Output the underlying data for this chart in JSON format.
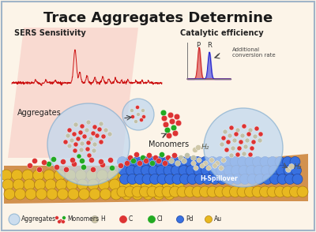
{
  "title": "Trace Aggregates Determine",
  "title_fontsize": 13,
  "background_color": "#fcf4e8",
  "border_color": "#a0b4c8",
  "sers_label": "SERS Sensitivity",
  "cat_label": "Catalytic efficiency",
  "aggregates_label": "Aggregates",
  "monomers_label": "Monomers",
  "h_spillover_label": "H-Spillover",
  "h2_label": "H₂",
  "additional_label": "Additional\nconversion rate",
  "legend_items": [
    "Aggregates",
    "Monomers",
    "H",
    "C",
    "Cl",
    "Pd",
    "Au"
  ],
  "au_color": "#e8b820",
  "au_edge_color": "#b08010",
  "pd_color": "#3870e0",
  "pd_edge_color": "#1840a0",
  "red_mol_color": "#dd3333",
  "green_mol_color": "#22aa22",
  "gray_mol_color": "#c0c0a8",
  "aggregate_fill": "#c0d8f0",
  "aggregate_edge": "#88b0d0",
  "orange_surface": "#c87020",
  "sers_glow": "#f08080",
  "P_label": "P",
  "R_label": "R",
  "figsize": [
    4.0,
    2.94
  ],
  "dpi": 100
}
